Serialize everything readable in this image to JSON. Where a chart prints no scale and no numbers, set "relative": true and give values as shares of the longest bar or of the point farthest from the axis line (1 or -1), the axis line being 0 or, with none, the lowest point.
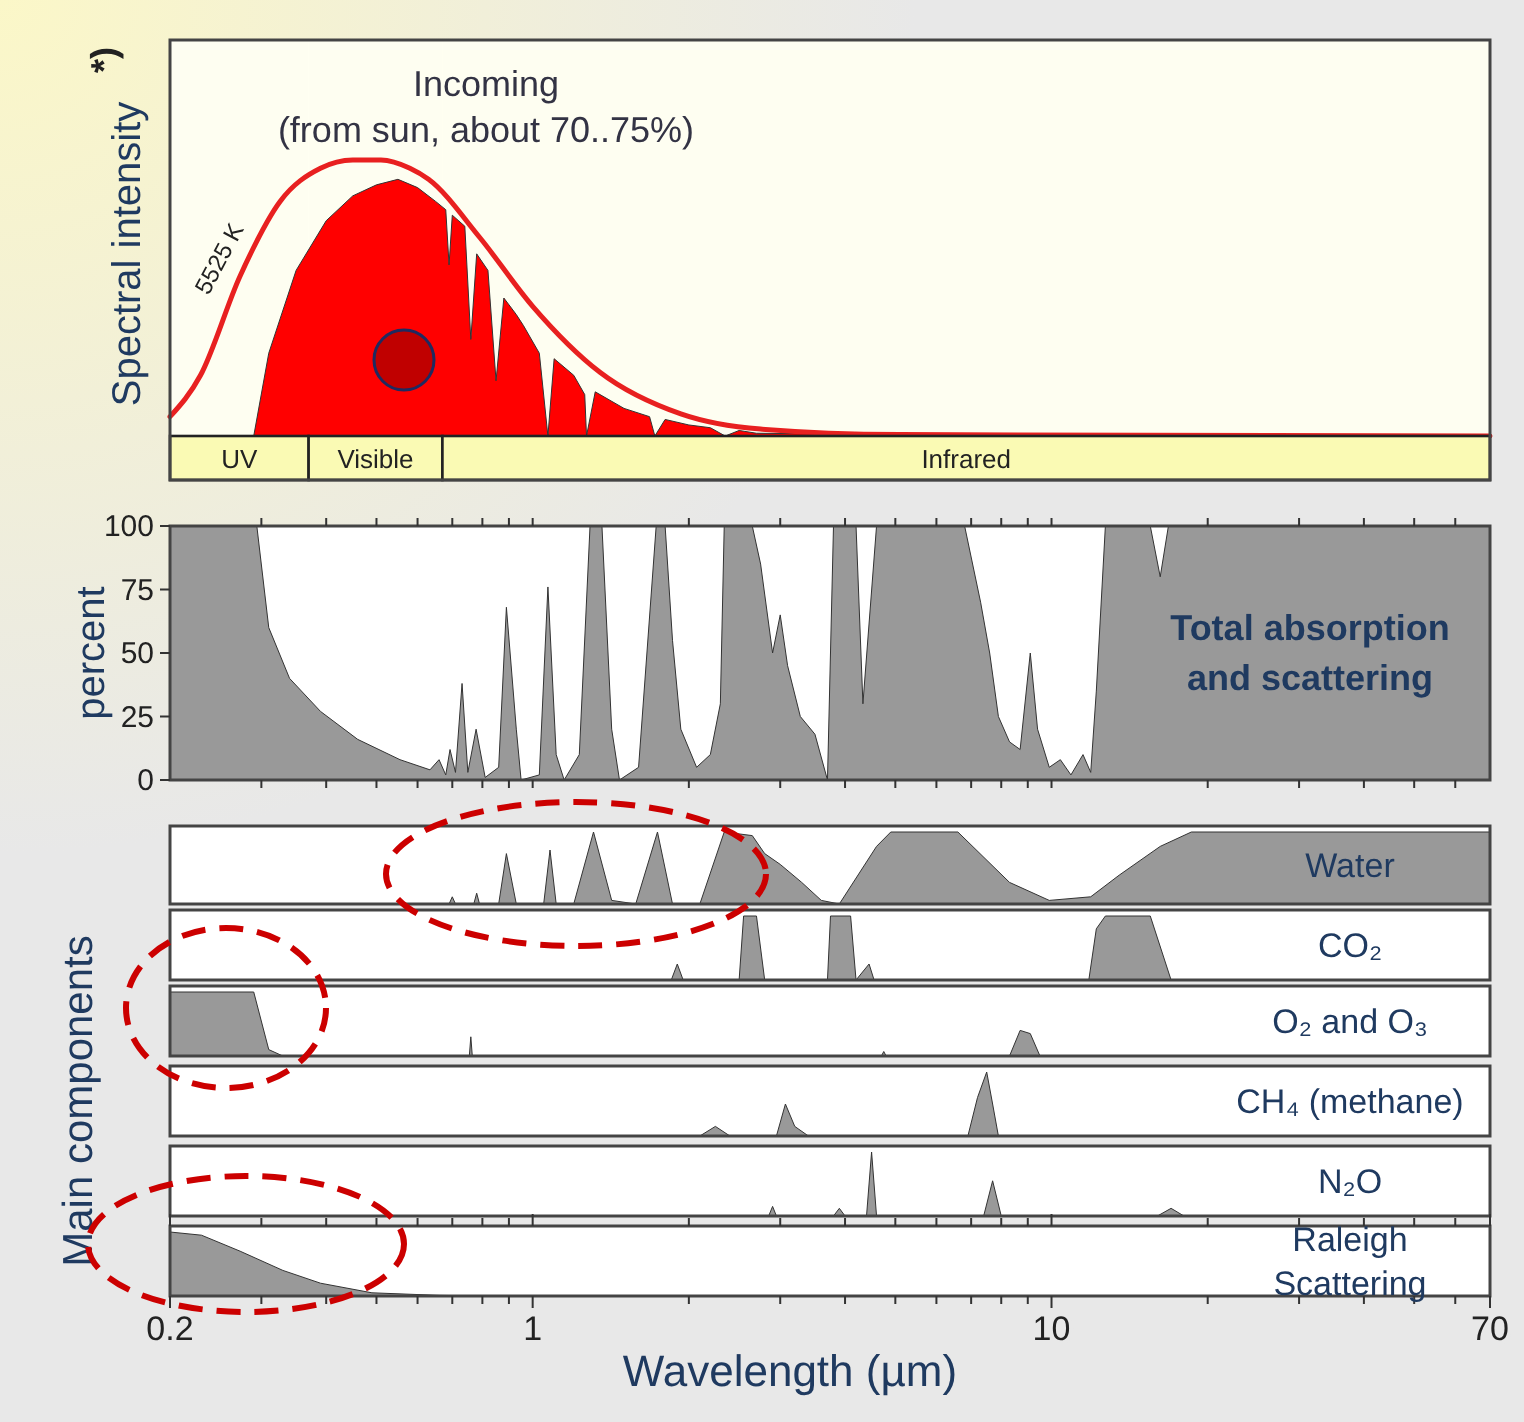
{
  "chart_data": [
    {
      "type": "area",
      "relative": true,
      "log": "x",
      "xlim": [
        0.2,
        70
      ],
      "ylabel": "Spectral intensity",
      "tick_labels": false,
      "annotations": [
        "Incoming",
        "(from sun, about 70..75%)",
        "*)"
      ],
      "bands": [
        {
          "axis": "x",
          "from": 0.2,
          "to": 0.37,
          "label": "UV",
          "color": "#fafab4"
        },
        {
          "axis": "x",
          "from": 0.37,
          "to": 0.67,
          "label": "Visible",
          "color": "#fafab4"
        },
        {
          "axis": "x",
          "from": 0.67,
          "to": 70,
          "label": "Infrared",
          "color": "#fafab4"
        }
      ],
      "series": [
        {
          "type": "area",
          "color": "#ff0000",
          "x": [
            0.2,
            0.29,
            0.31,
            0.35,
            0.4,
            0.45,
            0.5,
            0.55,
            0.6,
            0.65,
            0.68,
            0.69,
            0.7,
            0.74,
            0.76,
            0.78,
            0.82,
            0.85,
            0.88,
            0.93,
            0.96,
            1.03,
            1.07,
            1.1,
            1.2,
            1.26,
            1.27,
            1.32,
            1.5,
            1.68,
            1.72,
            1.8,
            2.0,
            2.2,
            2.35,
            2.5,
            2.7,
            3.5,
            5,
            70
          ],
          "values": [
            0,
            0,
            0.3,
            0.6,
            0.78,
            0.87,
            0.91,
            0.93,
            0.9,
            0.85,
            0.82,
            0.62,
            0.8,
            0.76,
            0.35,
            0.66,
            0.6,
            0.2,
            0.5,
            0.44,
            0.4,
            0.3,
            0,
            0.28,
            0.22,
            0.15,
            0,
            0.16,
            0.1,
            0.07,
            0,
            0.06,
            0.04,
            0.03,
            0,
            0.02,
            0.01,
            0.008,
            0.003,
            0
          ]
        },
        {
          "type": "line",
          "name": "5525 K",
          "color": "#e82020",
          "x": [
            0.2,
            0.229,
            0.273,
            0.326,
            0.39,
            0.45,
            0.51,
            0.58,
            0.63,
            0.79,
            1.0,
            1.35,
            1.93,
            2.75,
            5.1,
            70
          ],
          "values": [
            0.07,
            0.22,
            0.58,
            0.85,
            0.97,
            1.0,
            1.0,
            0.97,
            0.93,
            0.72,
            0.47,
            0.23,
            0.08,
            0.025,
            0.005,
            0
          ]
        }
      ]
    },
    {
      "type": "area",
      "log": "x",
      "xlim": [
        0.2,
        70
      ],
      "ylim": [
        0,
        100
      ],
      "yticks": [
        0,
        25,
        50,
        75,
        100
      ],
      "xticks": [
        {
          "value": 0.3,
          "label": null
        },
        {
          "value": 0.4,
          "label": null
        },
        {
          "value": 0.5,
          "label": null
        },
        {
          "value": 0.6,
          "label": null
        },
        {
          "value": 0.7,
          "label": null
        },
        {
          "value": 0.8,
          "label": null
        },
        {
          "value": 0.9,
          "label": null
        },
        {
          "value": 1,
          "label": null
        },
        {
          "value": 2,
          "label": null
        },
        {
          "value": 3,
          "label": null
        },
        {
          "value": 4,
          "label": null
        },
        {
          "value": 5,
          "label": null
        },
        {
          "value": 6,
          "label": null
        },
        {
          "value": 7,
          "label": null
        },
        {
          "value": 8,
          "label": null
        },
        {
          "value": 9,
          "label": null
        },
        {
          "value": 10,
          "label": null
        },
        {
          "value": 20,
          "label": null
        },
        {
          "value": 30,
          "label": null
        },
        {
          "value": 40,
          "label": null
        },
        {
          "value": 50,
          "label": null
        },
        {
          "value": 60,
          "label": null
        }
      ],
      "ylabel": "percent",
      "title": "Total absorption and scattering",
      "tick_labels": "y",
      "color": "#999999",
      "x": [
        0.2,
        0.294,
        0.31,
        0.34,
        0.39,
        0.46,
        0.555,
        0.634,
        0.66,
        0.68,
        0.693,
        0.71,
        0.731,
        0.75,
        0.778,
        0.81,
        0.86,
        0.89,
        0.93,
        0.95,
        1.03,
        1.07,
        1.11,
        1.15,
        1.23,
        1.29,
        1.36,
        1.42,
        1.47,
        1.6,
        1.73,
        1.8,
        1.86,
        1.93,
        2.07,
        2.2,
        2.3,
        2.34,
        2.65,
        2.75,
        2.9,
        3.0,
        3.1,
        3.28,
        3.5,
        3.7,
        3.8,
        4.2,
        4.33,
        4.6,
        6.8,
        7.3,
        7.6,
        7.9,
        8.3,
        8.7,
        9.1,
        9.4,
        9.9,
        10.4,
        10.9,
        11.5,
        11.9,
        12.2,
        12.7,
        15.5,
        16.2,
        16.8,
        70
      ],
      "values": [
        100,
        100,
        60,
        40,
        27,
        16,
        8,
        4,
        8,
        2,
        12,
        3,
        38,
        3,
        20,
        1,
        5,
        68,
        20,
        0,
        2,
        76,
        10,
        0,
        10,
        100,
        100,
        20,
        0,
        5,
        100,
        100,
        55,
        20,
        5,
        10,
        30,
        100,
        100,
        85,
        50,
        65,
        45,
        25,
        18,
        0,
        100,
        100,
        30,
        100,
        100,
        70,
        50,
        25,
        15,
        12,
        50,
        20,
        5,
        8,
        2,
        10,
        3,
        35,
        100,
        100,
        80,
        100,
        100
      ]
    },
    {
      "type": "area",
      "relative": true,
      "log": "x",
      "xlim": [
        0.2,
        70
      ],
      "title": "Water",
      "ylabel": "Main components",
      "tick_labels": false,
      "color": "#999999",
      "x": [
        0.2,
        0.58,
        0.69,
        0.7,
        0.71,
        0.77,
        0.78,
        0.79,
        0.86,
        0.89,
        0.93,
        1.05,
        1.08,
        1.11,
        1.2,
        1.31,
        1.42,
        1.58,
        1.74,
        1.86,
        2.1,
        2.34,
        2.65,
        2.8,
        3.0,
        3.3,
        3.6,
        3.9,
        4.6,
        4.9,
        6.6,
        8.3,
        9.9,
        11.9,
        13.5,
        16.2,
        18.6,
        70
      ],
      "values": [
        0,
        0,
        0,
        0.1,
        0,
        0,
        0.15,
        0,
        0,
        0.7,
        0,
        0,
        0.75,
        0,
        0,
        1,
        0.05,
        0,
        1,
        0,
        0,
        1,
        0.95,
        0.7,
        0.55,
        0.3,
        0.05,
        0,
        0.8,
        1,
        1,
        0.3,
        0.05,
        0.1,
        0.4,
        0.8,
        1,
        1
      ]
    },
    {
      "type": "area",
      "relative": true,
      "log": "x",
      "xlim": [
        0.2,
        70
      ],
      "title": "CO₂",
      "tick_labels": false,
      "color": "#999999",
      "x": [
        0.2,
        1.85,
        1.9,
        1.95,
        2.5,
        2.55,
        2.7,
        2.8,
        3.7,
        3.75,
        4.1,
        4.2,
        4.45,
        4.55,
        11.8,
        12.2,
        12.7,
        15.5,
        17,
        70
      ],
      "values": [
        0,
        0,
        0.25,
        0,
        0,
        1,
        1,
        0,
        0,
        1,
        1,
        0,
        0.25,
        0,
        0,
        0.8,
        1,
        1,
        0,
        0
      ]
    },
    {
      "type": "area",
      "relative": true,
      "log": "x",
      "xlim": [
        0.2,
        70
      ],
      "title": "O₂ and O₃",
      "tick_labels": false,
      "color": "#999999",
      "x": [
        0.2,
        0.29,
        0.31,
        0.33,
        0.755,
        0.76,
        0.765,
        4.7,
        4.75,
        4.8,
        8.3,
        8.7,
        9.1,
        9.5,
        70
      ],
      "values": [
        1,
        1,
        0.1,
        0,
        0,
        0.3,
        0,
        0,
        0.07,
        0,
        0,
        0.4,
        0.35,
        0,
        0
      ]
    },
    {
      "type": "area",
      "relative": true,
      "log": "x",
      "xlim": [
        0.2,
        70
      ],
      "title": "CH₄ (methane)",
      "tick_labels": false,
      "color": "#999999",
      "x": [
        0.2,
        2.1,
        2.25,
        2.4,
        2.95,
        3.07,
        3.2,
        3.4,
        6.9,
        7.2,
        7.5,
        7.7,
        7.9,
        70
      ],
      "values": [
        0,
        0,
        0.15,
        0,
        0,
        0.5,
        0.15,
        0,
        0,
        0.6,
        1,
        0.5,
        0,
        0
      ]
    },
    {
      "type": "area",
      "relative": true,
      "log": "x",
      "xlim": [
        0.2,
        70
      ],
      "title": "N₂O",
      "tick_labels": false,
      "color": "#999999",
      "x": [
        0.2,
        2.85,
        2.9,
        2.95,
        3.8,
        3.9,
        4.0,
        4.4,
        4.5,
        4.6,
        7.4,
        7.7,
        8.0,
        16,
        17,
        18,
        70
      ],
      "values": [
        0,
        0,
        0.15,
        0,
        0,
        0.12,
        0,
        0,
        1,
        0,
        0,
        0.55,
        0,
        0,
        0.12,
        0,
        0
      ]
    },
    {
      "type": "area",
      "relative": true,
      "log": "x",
      "xlim": [
        0.2,
        70
      ],
      "title": "Raleigh Scattering",
      "xlabel": "Wavelength (µm)",
      "tick_labels": "x",
      "color": "#999999",
      "xticks": [
        0.2,
        {
          "value": 0.3,
          "label": null
        },
        {
          "value": 0.4,
          "label": null
        },
        {
          "value": 0.5,
          "label": null
        },
        {
          "value": 0.6,
          "label": null
        },
        {
          "value": 0.7,
          "label": null
        },
        {
          "value": 0.8,
          "label": null
        },
        {
          "value": 0.9,
          "label": null
        },
        1,
        {
          "value": 2,
          "label": null
        },
        {
          "value": 3,
          "label": null
        },
        {
          "value": 4,
          "label": null
        },
        {
          "value": 5,
          "label": null
        },
        {
          "value": 6,
          "label": null
        },
        {
          "value": 7,
          "label": null
        },
        {
          "value": 8,
          "label": null
        },
        {
          "value": 9,
          "label": null
        },
        10,
        {
          "value": 20,
          "label": null
        },
        {
          "value": 30,
          "label": null
        },
        {
          "value": 40,
          "label": null
        },
        {
          "value": 50,
          "label": null
        },
        {
          "value": 60,
          "label": null
        },
        70
      ],
      "x": [
        0.2,
        0.23,
        0.273,
        0.33,
        0.39,
        0.49,
        0.66,
        0.8,
        70
      ],
      "values": [
        1,
        0.95,
        0.7,
        0.4,
        0.2,
        0.05,
        0.01,
        0,
        0
      ]
    }
  ]
}
